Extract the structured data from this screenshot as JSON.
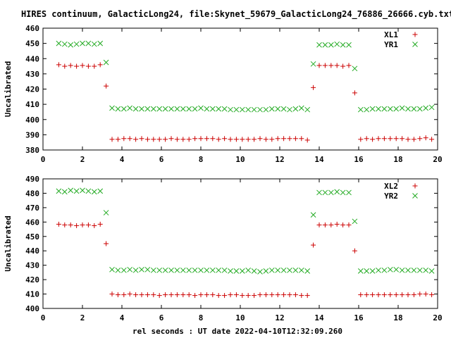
{
  "title": "HIRES continuum, GalacticLong24, file:Skynet_59679_GalacticLong24_76886_26666.cyb.txt",
  "xlabel": "rel seconds : UT date 2022-04-10T12:32:09.260",
  "colors": {
    "series_x": "#cc0000",
    "series_y": "#22aa22",
    "axis": "#000000"
  },
  "chart_data": [
    {
      "type": "scatter",
      "ylabel": "Uncalibrated",
      "xlim": [
        0,
        20
      ],
      "ylim": [
        380,
        460
      ],
      "xticks": [
        0,
        2,
        4,
        6,
        8,
        10,
        12,
        14,
        16,
        18,
        20
      ],
      "yticks": [
        380,
        390,
        400,
        410,
        420,
        430,
        440,
        450,
        460
      ],
      "legend_position": "top-right",
      "series": [
        {
          "name": "XL1",
          "marker": "plus",
          "x": [
            0.8,
            1.1,
            1.4,
            1.7,
            2.0,
            2.3,
            2.6,
            2.9,
            3.2,
            3.5,
            3.8,
            4.1,
            4.4,
            4.7,
            5.0,
            5.3,
            5.6,
            5.9,
            6.2,
            6.5,
            6.8,
            7.1,
            7.4,
            7.7,
            8.0,
            8.3,
            8.6,
            8.9,
            9.2,
            9.5,
            9.8,
            10.1,
            10.4,
            10.7,
            11.0,
            11.3,
            11.6,
            11.9,
            12.2,
            12.5,
            12.8,
            13.1,
            13.4,
            13.7,
            14.0,
            14.3,
            14.6,
            14.9,
            15.2,
            15.5,
            15.8,
            16.1,
            16.4,
            16.7,
            17.0,
            17.3,
            17.6,
            17.9,
            18.2,
            18.5,
            18.8,
            19.1,
            19.4,
            19.7
          ],
          "y": [
            436,
            435,
            435.5,
            435,
            435.5,
            435,
            435,
            436,
            422,
            387,
            387,
            387.5,
            387.5,
            387,
            387.5,
            387,
            387,
            387,
            387,
            387.5,
            387,
            387,
            387,
            387.5,
            387.5,
            387.5,
            387.5,
            387,
            387.5,
            387,
            387,
            387,
            387,
            387,
            387.5,
            387,
            387,
            387.5,
            387.5,
            387.5,
            387.5,
            387.5,
            386.5,
            421,
            435.5,
            435.5,
            435.5,
            435.5,
            435,
            435.5,
            417.5,
            387,
            387.5,
            387,
            387.5,
            387.5,
            387.5,
            387.5,
            387.5,
            387,
            387,
            387.5,
            388,
            387
          ]
        },
        {
          "name": "YR1",
          "marker": "cross",
          "x": [
            0.8,
            1.1,
            1.4,
            1.7,
            2.0,
            2.3,
            2.6,
            2.9,
            3.2,
            3.5,
            3.8,
            4.1,
            4.4,
            4.7,
            5.0,
            5.3,
            5.6,
            5.9,
            6.2,
            6.5,
            6.8,
            7.1,
            7.4,
            7.7,
            8.0,
            8.3,
            8.6,
            8.9,
            9.2,
            9.5,
            9.8,
            10.1,
            10.4,
            10.7,
            11.0,
            11.3,
            11.6,
            11.9,
            12.2,
            12.5,
            12.8,
            13.1,
            13.4,
            13.7,
            14.0,
            14.3,
            14.6,
            14.9,
            15.2,
            15.5,
            15.8,
            16.1,
            16.4,
            16.7,
            17.0,
            17.3,
            17.6,
            17.9,
            18.2,
            18.5,
            18.8,
            19.1,
            19.4,
            19.7
          ],
          "y": [
            450,
            449.5,
            449,
            449.5,
            450,
            450,
            449.5,
            450,
            437.5,
            407.5,
            407,
            407,
            407.5,
            407,
            407,
            407,
            407,
            407,
            407,
            407,
            407,
            407,
            407,
            407,
            407.5,
            407,
            407,
            407,
            407,
            406.5,
            406.5,
            406.5,
            406.5,
            406.5,
            406.5,
            406.5,
            407,
            407,
            407,
            406.5,
            407,
            407.5,
            406.5,
            436.5,
            449,
            449,
            449,
            449.5,
            449,
            449,
            433.5,
            406.5,
            406.5,
            407,
            407,
            407,
            407,
            407,
            407.5,
            407,
            407,
            407,
            407.5,
            408
          ]
        }
      ]
    },
    {
      "type": "scatter",
      "ylabel": "Uncalibrated",
      "xlim": [
        0,
        20
      ],
      "ylim": [
        400,
        490
      ],
      "xticks": [
        0,
        2,
        4,
        6,
        8,
        10,
        12,
        14,
        16,
        18,
        20
      ],
      "yticks": [
        400,
        410,
        420,
        430,
        440,
        450,
        460,
        470,
        480,
        490
      ],
      "legend_position": "top-right",
      "series": [
        {
          "name": "XL2",
          "marker": "plus",
          "x": [
            0.8,
            1.1,
            1.4,
            1.7,
            2.0,
            2.3,
            2.6,
            2.9,
            3.2,
            3.5,
            3.8,
            4.1,
            4.4,
            4.7,
            5.0,
            5.3,
            5.6,
            5.9,
            6.2,
            6.5,
            6.8,
            7.1,
            7.4,
            7.7,
            8.0,
            8.3,
            8.6,
            8.9,
            9.2,
            9.5,
            9.8,
            10.1,
            10.4,
            10.7,
            11.0,
            11.3,
            11.6,
            11.9,
            12.2,
            12.5,
            12.8,
            13.1,
            13.4,
            13.7,
            14.0,
            14.3,
            14.6,
            14.9,
            15.2,
            15.5,
            15.8,
            16.1,
            16.4,
            16.7,
            17.0,
            17.3,
            17.6,
            17.9,
            18.2,
            18.5,
            18.8,
            19.1,
            19.4,
            19.7
          ],
          "y": [
            458.5,
            458,
            458,
            457.5,
            458,
            458,
            457.5,
            458.5,
            445,
            410,
            409.5,
            409.5,
            410,
            409.5,
            409.5,
            409.5,
            409.5,
            409,
            409.5,
            409.5,
            409.5,
            409.5,
            409.5,
            409,
            409.5,
            409.5,
            409.5,
            409,
            409,
            409.5,
            409.5,
            409,
            409,
            409,
            409.5,
            409.5,
            409.5,
            409.5,
            409.5,
            409.5,
            409.5,
            409,
            409,
            444,
            458,
            458,
            458,
            458.5,
            458,
            458,
            440,
            409.5,
            409.5,
            409.5,
            409.5,
            409.5,
            409.5,
            409.5,
            409.5,
            409.5,
            409.5,
            410,
            410,
            409.5
          ]
        },
        {
          "name": "YR2",
          "marker": "cross",
          "x": [
            0.8,
            1.1,
            1.4,
            1.7,
            2.0,
            2.3,
            2.6,
            2.9,
            3.2,
            3.5,
            3.8,
            4.1,
            4.4,
            4.7,
            5.0,
            5.3,
            5.6,
            5.9,
            6.2,
            6.5,
            6.8,
            7.1,
            7.4,
            7.7,
            8.0,
            8.3,
            8.6,
            8.9,
            9.2,
            9.5,
            9.8,
            10.1,
            10.4,
            10.7,
            11.0,
            11.3,
            11.6,
            11.9,
            12.2,
            12.5,
            12.8,
            13.1,
            13.4,
            13.7,
            14.0,
            14.3,
            14.6,
            14.9,
            15.2,
            15.5,
            15.8,
            16.1,
            16.4,
            16.7,
            17.0,
            17.3,
            17.6,
            17.9,
            18.2,
            18.5,
            18.8,
            19.1,
            19.4,
            19.7
          ],
          "y": [
            481.5,
            481,
            482,
            481.5,
            482,
            481.5,
            481,
            481.5,
            466.5,
            427,
            426.5,
            426.5,
            427,
            426.5,
            427,
            427,
            426.5,
            426.5,
            426.5,
            426.5,
            426.5,
            426.5,
            426.5,
            426.5,
            426.5,
            426.5,
            426.5,
            426.5,
            426.5,
            426,
            426,
            426,
            426.5,
            426,
            425.5,
            426,
            426.5,
            426.5,
            426.5,
            426.5,
            426.5,
            426.5,
            426,
            465,
            480.5,
            480.5,
            480.5,
            481,
            480.5,
            480.5,
            460.5,
            426,
            426,
            426,
            426.5,
            426.5,
            427,
            427,
            426.5,
            426.5,
            426.5,
            426.5,
            426.5,
            426
          ]
        }
      ]
    }
  ]
}
